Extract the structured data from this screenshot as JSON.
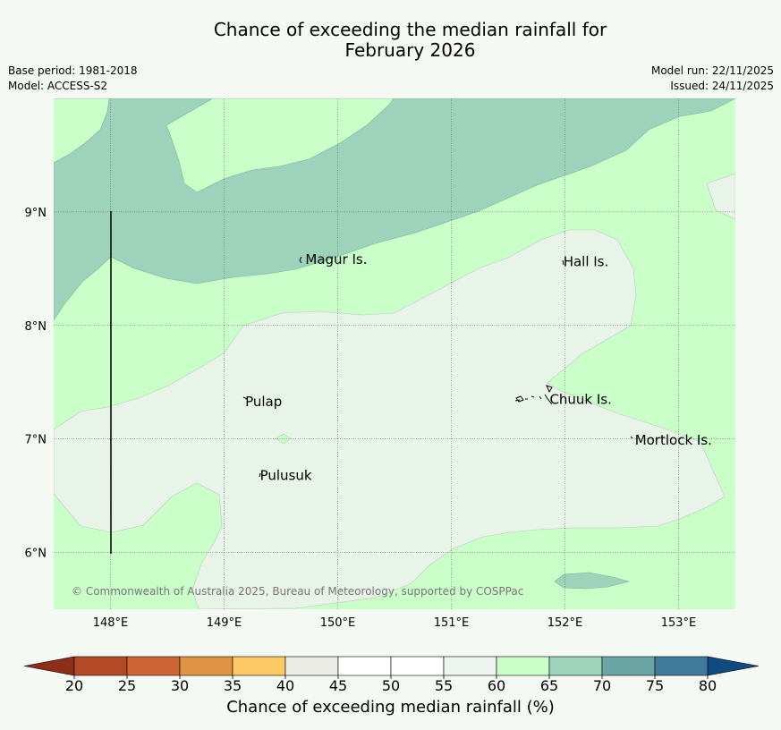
{
  "title": {
    "line1": "Chance of exceeding the median rainfall for",
    "line2": "February 2026"
  },
  "meta": {
    "base_period": "Base period: 1981-2018",
    "model": "Model: ACCESS-S2",
    "model_run": "Model run: 22/11/2025",
    "issued": "Issued: 24/11/2025"
  },
  "map": {
    "longitude_range": [
      147.5,
      153.5
    ],
    "latitude_range": [
      5.5,
      10.0
    ],
    "lon_ticks": [
      "148°E",
      "149°E",
      "150°E",
      "151°E",
      "152°E",
      "153°E"
    ],
    "lat_ticks": [
      "9°N",
      "8°N",
      "7°N",
      "6°N"
    ],
    "places": [
      {
        "name": "Magur Is.",
        "lon": 149.7,
        "lat": 8.58
      },
      {
        "name": "Hall Is.",
        "lon": 151.97,
        "lat": 8.56
      },
      {
        "name": "Pulap",
        "lon": 149.17,
        "lat": 7.33
      },
      {
        "name": "Chuuk Is.",
        "lon": 151.85,
        "lat": 7.35
      },
      {
        "name": "Mortlock Is.",
        "lon": 152.6,
        "lat": 6.99
      },
      {
        "name": "Pulusuk",
        "lon": 149.3,
        "lat": 6.68
      }
    ],
    "copyright": "© Commonwealth of Australia 2025, Bureau of Meteorology, supported by COSPPac",
    "colors": {
      "band_60_65": "#caffca",
      "band_65_70": "#9dd2bb",
      "band_55_60": "#e9f4e9",
      "grid": "#555555"
    }
  },
  "colorbar": {
    "title": "Chance of exceeding median rainfall (%)",
    "labels": [
      "20",
      "25",
      "30",
      "35",
      "40",
      "45",
      "50",
      "55",
      "60",
      "65",
      "70",
      "75",
      "80"
    ],
    "colors": [
      "#b34a25",
      "#cf6535",
      "#e29445",
      "#fdc965",
      "#ecece7",
      "#ffffff",
      "#ffffff",
      "#eef4ee",
      "#caffca",
      "#9dd2bb",
      "#6ba5a6",
      "#40799a"
    ],
    "under_color": "#8e2e18",
    "over_color": "#104a80"
  }
}
